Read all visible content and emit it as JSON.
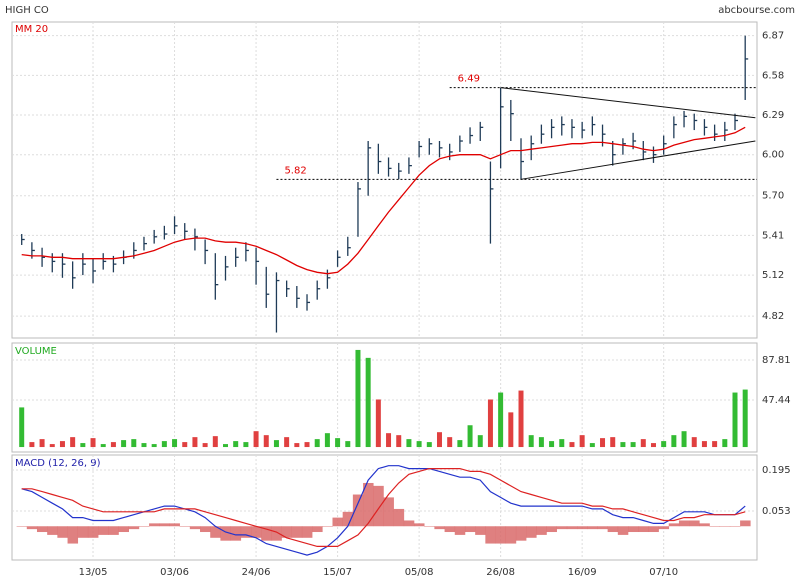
{
  "chart_data": [
    {
      "type": "hlc",
      "title": "HIGH CO",
      "source": "abcbourse.com",
      "color": "#1f3b57",
      "categories": [
        null,
        null,
        null,
        null,
        null,
        null,
        null,
        "13/05",
        null,
        null,
        null,
        null,
        null,
        null,
        null,
        "03/06",
        null,
        null,
        null,
        null,
        null,
        null,
        null,
        "24/06",
        null,
        null,
        null,
        null,
        null,
        null,
        null,
        "15/07",
        null,
        null,
        null,
        null,
        null,
        null,
        null,
        "05/08",
        null,
        null,
        null,
        null,
        null,
        null,
        null,
        "26/08",
        null,
        null,
        null,
        null,
        null,
        null,
        null,
        "16/09",
        null,
        null,
        null,
        null,
        null,
        null,
        null,
        "07/10",
        null,
        null,
        null,
        null,
        null,
        null,
        null,
        null
      ],
      "high": [
        5.42,
        5.36,
        5.32,
        5.28,
        5.28,
        5.22,
        5.28,
        5.24,
        5.28,
        5.26,
        5.3,
        5.36,
        5.4,
        5.45,
        5.48,
        5.55,
        5.5,
        5.46,
        5.38,
        5.28,
        5.26,
        5.32,
        5.36,
        5.32,
        5.18,
        5.14,
        5.08,
        5.04,
        4.98,
        5.08,
        5.16,
        5.3,
        5.4,
        5.8,
        6.1,
        6.08,
        5.98,
        5.94,
        5.98,
        6.1,
        6.12,
        6.1,
        6.08,
        6.14,
        6.2,
        6.24,
        5.95,
        6.49,
        6.4,
        6.12,
        6.14,
        6.22,
        6.26,
        6.28,
        6.26,
        6.24,
        6.28,
        6.22,
        6.1,
        6.12,
        6.16,
        6.1,
        6.06,
        6.14,
        6.28,
        6.32,
        6.3,
        6.26,
        6.22,
        6.24,
        6.3,
        6.87
      ],
      "low": [
        5.34,
        5.24,
        5.18,
        5.14,
        5.1,
        5.02,
        5.12,
        5.06,
        5.16,
        5.14,
        5.2,
        5.24,
        5.3,
        5.35,
        5.38,
        5.42,
        5.38,
        5.3,
        5.2,
        4.94,
        5.08,
        5.18,
        5.22,
        5.05,
        4.88,
        4.7,
        4.96,
        4.88,
        4.86,
        4.94,
        5.02,
        5.18,
        5.26,
        5.4,
        5.7,
        5.86,
        5.84,
        5.82,
        5.86,
        5.98,
        6.0,
        5.98,
        5.96,
        6.02,
        6.08,
        6.1,
        5.35,
        5.9,
        6.1,
        5.82,
        5.96,
        6.08,
        6.12,
        6.14,
        6.12,
        6.12,
        6.14,
        6.06,
        5.92,
        6.0,
        6.04,
        5.96,
        5.94,
        6.0,
        6.12,
        6.2,
        6.18,
        6.14,
        6.1,
        6.1,
        6.18,
        6.4
      ],
      "close": [
        5.38,
        5.3,
        5.25,
        5.22,
        5.2,
        5.1,
        5.2,
        5.15,
        5.22,
        5.2,
        5.25,
        5.3,
        5.35,
        5.4,
        5.42,
        5.48,
        5.44,
        5.4,
        5.3,
        5.05,
        5.18,
        5.25,
        5.3,
        5.22,
        4.98,
        5.08,
        5.02,
        4.95,
        4.92,
        5.02,
        5.1,
        5.25,
        5.32,
        5.75,
        6.05,
        5.95,
        5.9,
        5.88,
        5.92,
        6.06,
        6.08,
        6.05,
        6.02,
        6.1,
        6.14,
        6.2,
        5.75,
        6.35,
        6.3,
        5.95,
        6.08,
        6.15,
        6.2,
        6.22,
        6.2,
        6.18,
        6.22,
        6.15,
        6.0,
        6.08,
        6.1,
        6.02,
        6.0,
        6.08,
        6.22,
        6.28,
        6.25,
        6.2,
        6.15,
        6.18,
        6.25,
        6.7
      ],
      "ma": {
        "name": "MM 20",
        "color": "#e00000",
        "values": [
          5.27,
          5.26,
          5.26,
          5.25,
          5.25,
          5.24,
          5.24,
          5.24,
          5.24,
          5.24,
          5.25,
          5.26,
          5.28,
          5.3,
          5.33,
          5.36,
          5.38,
          5.39,
          5.39,
          5.37,
          5.36,
          5.36,
          5.35,
          5.33,
          5.3,
          5.27,
          5.23,
          5.19,
          5.16,
          5.14,
          5.13,
          5.14,
          5.2,
          5.28,
          5.38,
          5.48,
          5.58,
          5.67,
          5.76,
          5.85,
          5.92,
          5.97,
          5.99,
          6.0,
          6.0,
          6.0,
          5.97,
          6.0,
          6.03,
          6.03,
          6.04,
          6.05,
          6.06,
          6.07,
          6.08,
          6.08,
          6.09,
          6.09,
          6.08,
          6.07,
          6.06,
          6.04,
          6.03,
          6.04,
          6.07,
          6.09,
          6.11,
          6.12,
          6.13,
          6.14,
          6.16,
          6.2
        ]
      },
      "levels": [
        {
          "value": 6.49,
          "x0": 42,
          "color": "#e00000"
        },
        {
          "value": 5.82,
          "x0": 25,
          "color": "#e00000"
        }
      ],
      "trendlines": [
        {
          "x": [
            47,
            72
          ],
          "y": [
            6.49,
            6.27
          ]
        },
        {
          "x": [
            49,
            72
          ],
          "y": [
            5.82,
            6.1
          ]
        }
      ],
      "ylim": [
        4.66,
        6.97
      ],
      "yticks": [
        4.82,
        5.12,
        5.41,
        {
          "value": 5.7,
          "label": "5.70"
        },
        {
          "value": 6,
          "label": "6.00"
        },
        6.29,
        6.58,
        6.87
      ],
      "grid": true
    },
    {
      "type": "bar",
      "title": "VOLUME",
      "up_color": "#33bb33",
      "down_color": "#e04040",
      "values": [
        40,
        5,
        8,
        3,
        6,
        10,
        4,
        9,
        3,
        5,
        7,
        8,
        4,
        3,
        6,
        8,
        5,
        10,
        4,
        11,
        3,
        6,
        5,
        16,
        12,
        7,
        10,
        4,
        5,
        8,
        14,
        9,
        6,
        98,
        90,
        48,
        14,
        12,
        8,
        6,
        5,
        15,
        10,
        7,
        22,
        12,
        48,
        55,
        35,
        57,
        12,
        10,
        6,
        8,
        5,
        12,
        4,
        9,
        10,
        5,
        5,
        8,
        4,
        6,
        12,
        16,
        10,
        6,
        6,
        8,
        55,
        58
      ],
      "ylim": [
        -5,
        105
      ],
      "yticks": [
        47.44,
        87.81
      ],
      "grid": true
    },
    {
      "type": "macd",
      "title": "MACD (12, 26, 9)",
      "series": [
        {
          "color": "#2233cc",
          "values": [
            0.13,
            0.12,
            0.1,
            0.08,
            0.06,
            0.03,
            0.03,
            0.02,
            0.02,
            0.02,
            0.03,
            0.04,
            0.05,
            0.06,
            0.07,
            0.07,
            0.06,
            0.05,
            0.03,
            0.0,
            -0.02,
            -0.03,
            -0.03,
            -0.04,
            -0.06,
            -0.07,
            -0.08,
            -0.09,
            -0.1,
            -0.09,
            -0.07,
            -0.04,
            0.0,
            0.08,
            0.16,
            0.2,
            0.21,
            0.21,
            0.2,
            0.2,
            0.2,
            0.19,
            0.18,
            0.17,
            0.17,
            0.16,
            0.12,
            0.1,
            0.08,
            0.07,
            0.07,
            0.07,
            0.07,
            0.07,
            0.07,
            0.07,
            0.06,
            0.06,
            0.04,
            0.03,
            0.03,
            0.02,
            0.01,
            0.01,
            0.03,
            0.05,
            0.05,
            0.05,
            0.04,
            0.04,
            0.04,
            0.07
          ]
        },
        {
          "color": "#dd2222",
          "values": [
            0.13,
            0.13,
            0.12,
            0.11,
            0.1,
            0.09,
            0.07,
            0.06,
            0.05,
            0.05,
            0.05,
            0.05,
            0.05,
            0.05,
            0.06,
            0.06,
            0.06,
            0.06,
            0.05,
            0.04,
            0.03,
            0.02,
            0.01,
            0.0,
            -0.01,
            -0.02,
            -0.04,
            -0.05,
            -0.06,
            -0.07,
            -0.07,
            -0.07,
            -0.05,
            -0.03,
            0.01,
            0.06,
            0.11,
            0.15,
            0.18,
            0.19,
            0.2,
            0.2,
            0.2,
            0.2,
            0.19,
            0.19,
            0.18,
            0.16,
            0.14,
            0.12,
            0.11,
            0.1,
            0.09,
            0.08,
            0.08,
            0.08,
            0.07,
            0.07,
            0.06,
            0.06,
            0.05,
            0.04,
            0.03,
            0.02,
            0.02,
            0.03,
            0.03,
            0.04,
            0.04,
            0.04,
            0.04,
            0.05
          ]
        }
      ],
      "histogram": {
        "color": "#d96a6a",
        "values": [
          0,
          -0.01,
          -0.02,
          -0.03,
          -0.04,
          -0.06,
          -0.04,
          -0.04,
          -0.03,
          -0.03,
          -0.02,
          -0.01,
          0,
          0.01,
          0.01,
          0.01,
          0,
          -0.01,
          -0.02,
          -0.04,
          -0.05,
          -0.05,
          -0.04,
          -0.04,
          -0.05,
          -0.05,
          -0.04,
          -0.04,
          -0.04,
          -0.02,
          0,
          0.03,
          0.05,
          0.11,
          0.15,
          0.14,
          0.1,
          0.06,
          0.02,
          0.01,
          0,
          -0.01,
          -0.02,
          -0.03,
          -0.02,
          -0.03,
          -0.06,
          -0.06,
          -0.06,
          -0.05,
          -0.04,
          -0.03,
          -0.02,
          -0.01,
          -0.01,
          -0.01,
          -0.01,
          -0.01,
          -0.02,
          -0.03,
          -0.02,
          -0.02,
          -0.02,
          -0.01,
          0.01,
          0.02,
          0.02,
          0.01,
          0,
          0,
          0,
          0.02
        ]
      },
      "ylim": [
        -0.117,
        0.247
      ],
      "yticks": [
        0.053,
        0.195
      ],
      "grid": true
    }
  ]
}
